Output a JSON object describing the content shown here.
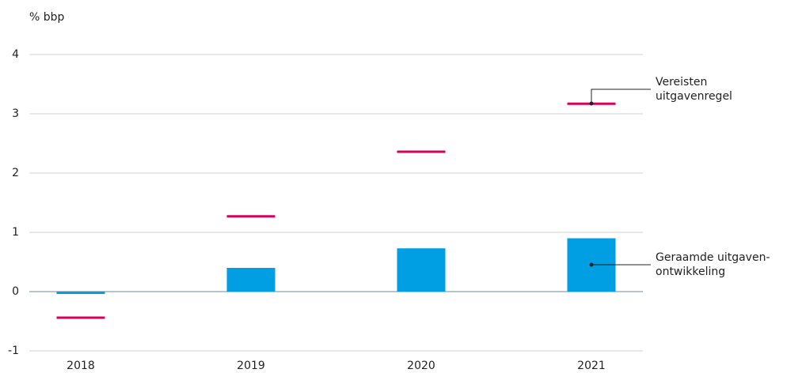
{
  "chart_data": {
    "type": "bar_marker",
    "y_axis_label": "% bbp",
    "categories": [
      "2018",
      "2019",
      "2020",
      "2021"
    ],
    "series": [
      {
        "name": "Geraamde uitgaven-ontwikkeling",
        "kind": "bar",
        "color": "#009fe3",
        "values": [
          -0.04,
          0.4,
          0.73,
          0.9
        ]
      },
      {
        "name": "Vereisten uitgavenregel",
        "kind": "marker",
        "color": "#d9005b",
        "values": [
          -0.44,
          1.27,
          2.36,
          3.17
        ]
      }
    ],
    "ylim": [
      -1,
      4
    ],
    "yticks": [
      -1,
      0,
      1,
      2,
      3,
      4
    ],
    "grid": true
  }
}
